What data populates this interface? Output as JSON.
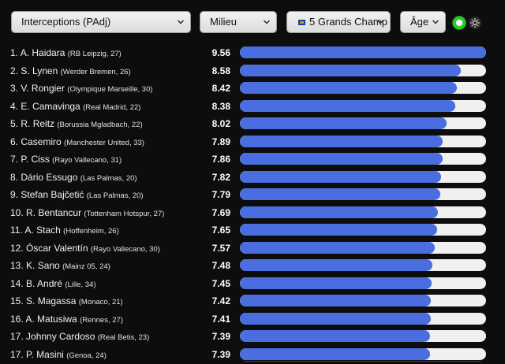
{
  "filters": {
    "metric": "Interceptions (PAdj)",
    "position": "Milieu",
    "league": "5 Grands Champ",
    "age": "Âge"
  },
  "icons": {
    "toggle": "green-toggle-icon",
    "theme": "sun-icon"
  },
  "colors": {
    "background": "#0d0d0d",
    "bar_fill": "#4a6ee0",
    "bar_track": "#f0f0f0",
    "toggle_on": "#2ec92e"
  },
  "max_value": 9.56,
  "players": [
    {
      "rank": "1.",
      "name": "A. Haidara",
      "club": "(RB Leipzig, 27)",
      "value": "9.56"
    },
    {
      "rank": "2.",
      "name": "S. Lynen",
      "club": "(Werder Bremen, 26)",
      "value": "8.58"
    },
    {
      "rank": "3.",
      "name": "V. Rongier",
      "club": "(Olympique Marseille, 30)",
      "value": "8.42"
    },
    {
      "rank": "4.",
      "name": "E. Camavinga",
      "club": "(Real Madrid, 22)",
      "value": "8.38"
    },
    {
      "rank": "5.",
      "name": "R. Reitz",
      "club": "(Borussia Mgladbach, 22)",
      "value": "8.02"
    },
    {
      "rank": "6.",
      "name": "Casemiro",
      "club": "(Manchester United, 33)",
      "value": "7.89"
    },
    {
      "rank": "7.",
      "name": "P. Ciss",
      "club": "(Rayo Vallecano, 31)",
      "value": "7.86"
    },
    {
      "rank": "8.",
      "name": "Dário Essugo",
      "club": "(Las Palmas, 20)",
      "value": "7.82"
    },
    {
      "rank": "9.",
      "name": "Stefan Bajčetić",
      "club": "(Las Palmas, 20)",
      "value": "7.79"
    },
    {
      "rank": "10.",
      "name": "R. Bentancur",
      "club": "(Tottenham Hotspur, 27)",
      "value": "7.69"
    },
    {
      "rank": "11.",
      "name": "A. Stach",
      "club": "(Hoffenheim, 26)",
      "value": "7.65"
    },
    {
      "rank": "12.",
      "name": "Óscar Valentín",
      "club": "(Rayo Vallecano, 30)",
      "value": "7.57"
    },
    {
      "rank": "13.",
      "name": "K. Sano",
      "club": "(Mainz 05, 24)",
      "value": "7.48"
    },
    {
      "rank": "14.",
      "name": "B. André",
      "club": "(Lille, 34)",
      "value": "7.45"
    },
    {
      "rank": "15.",
      "name": "S. Magassa",
      "club": "(Monaco, 21)",
      "value": "7.42"
    },
    {
      "rank": "16.",
      "name": "A. Matusiwa",
      "club": "(Rennes, 27)",
      "value": "7.41"
    },
    {
      "rank": "17.",
      "name": "Johnny Cardoso",
      "club": "(Real Betis, 23)",
      "value": "7.39"
    },
    {
      "rank": "17.",
      "name": "P. Masini",
      "club": "(Genoa, 24)",
      "value": "7.39"
    }
  ]
}
